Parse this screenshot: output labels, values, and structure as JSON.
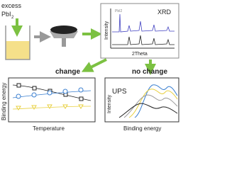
{
  "precursor": {
    "line1": "excess",
    "formula": "PbI",
    "subscript": "2"
  },
  "xrd": {
    "title": "XRD",
    "peak_label": "PbI2",
    "y_label": "Intensity",
    "x_label": "2Theta"
  },
  "branches": {
    "left": "change",
    "right": "no change"
  },
  "temperature_plot": {
    "y_label": "Binding energy",
    "x_label": "Temperature"
  },
  "ups_plot": {
    "title": "UPS",
    "y_label": "Intensity",
    "x_label": "Binding energy"
  }
}
